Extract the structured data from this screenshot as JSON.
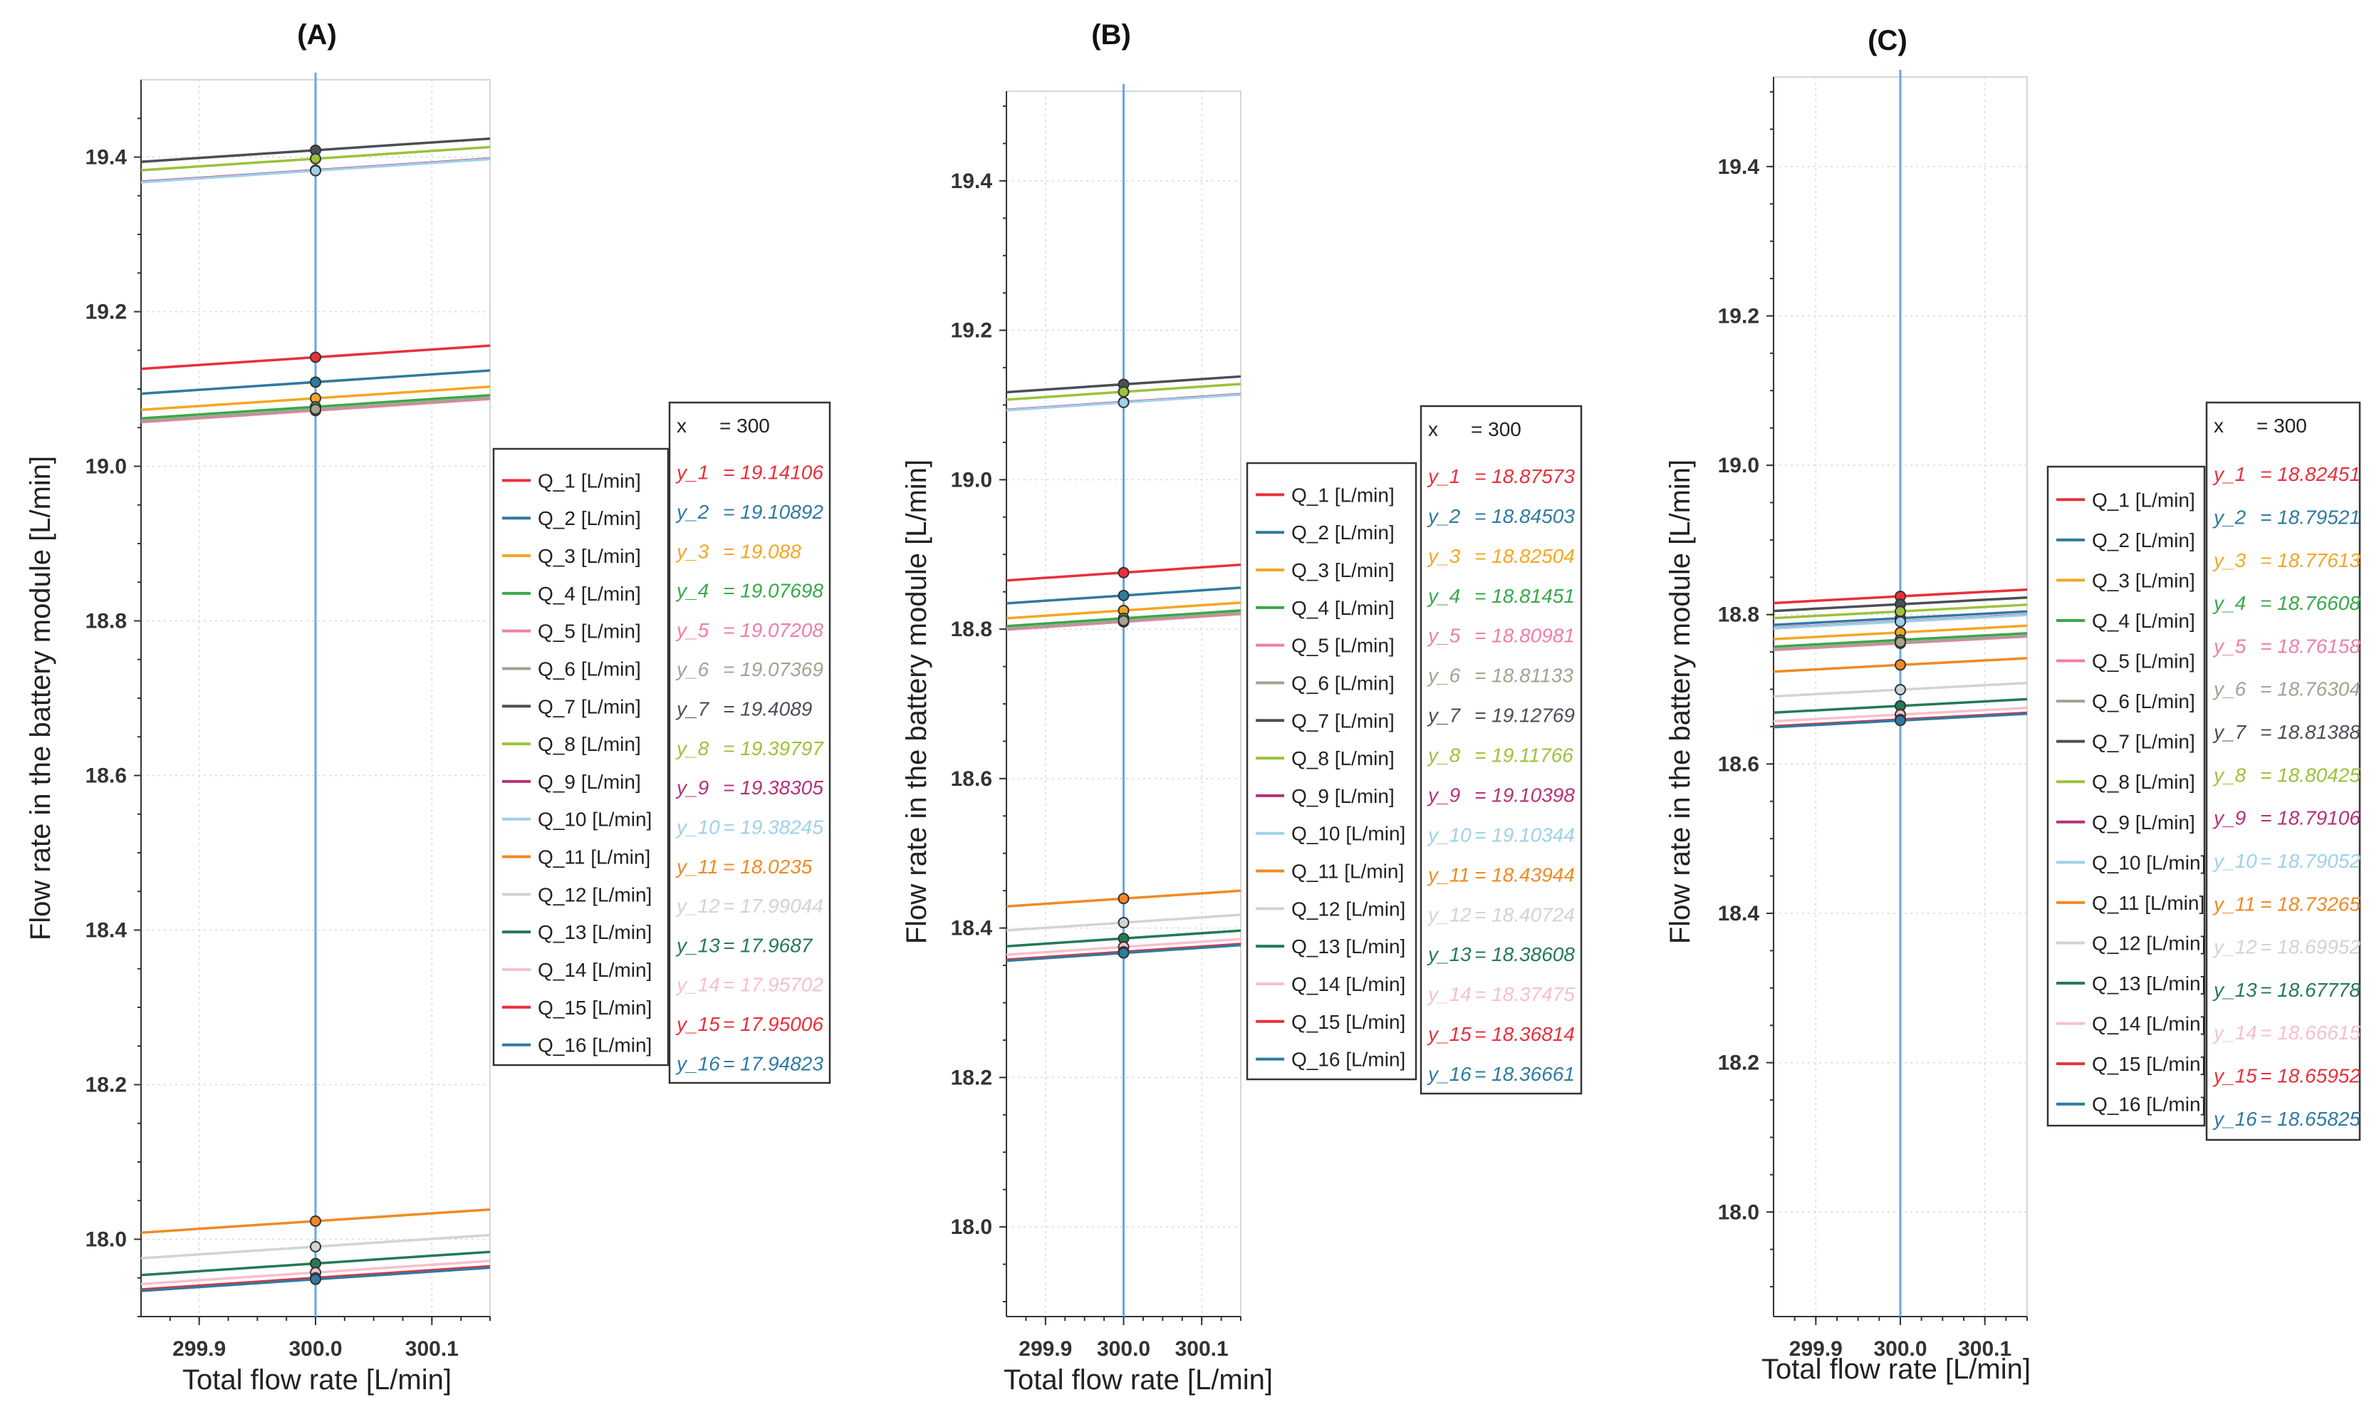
{
  "chart_data": [
    {
      "panel": "(A)",
      "type": "line",
      "xlabel": "Total flow rate [L/min]",
      "ylabel": "Flow rate in the battery module [L/min]",
      "x_range": [
        299.85,
        300.15
      ],
      "ylim": [
        17.9,
        19.5
      ],
      "xticks": [
        "299.9",
        "300.0",
        "300.1"
      ],
      "yticks": [
        "18.0",
        "18.2",
        "18.4",
        "18.6",
        "18.8",
        "19.0",
        "19.2",
        "19.4"
      ],
      "grid": true,
      "cursor_x": 300,
      "readout": {
        "x_label": "x",
        "x_value": "= 300"
      },
      "series": [
        {
          "name": "Q_1 [L/min]",
          "y_label": "y_1",
          "value_label": "= 19.14106",
          "value": 19.14106,
          "slope": 0.1
        },
        {
          "name": "Q_2 [L/min]",
          "y_label": "y_2",
          "value_label": "= 19.10892",
          "value": 19.10892,
          "slope": 0.1
        },
        {
          "name": "Q_3 [L/min]",
          "y_label": "y_3",
          "value_label": "= 19.088",
          "value": 19.088,
          "slope": 0.1
        },
        {
          "name": "Q_4 [L/min]",
          "y_label": "y_4",
          "value_label": "= 19.07698",
          "value": 19.07698,
          "slope": 0.1
        },
        {
          "name": "Q_5 [L/min]",
          "y_label": "y_5",
          "value_label": "= 19.07208",
          "value": 19.07208,
          "slope": 0.1
        },
        {
          "name": "Q_6 [L/min]",
          "y_label": "y_6",
          "value_label": "= 19.07369",
          "value": 19.07369,
          "slope": 0.1
        },
        {
          "name": "Q_7 [L/min]",
          "y_label": "y_7",
          "value_label": "= 19.4089",
          "value": 19.4089,
          "slope": 0.1
        },
        {
          "name": "Q_8 [L/min]",
          "y_label": "y_8",
          "value_label": "= 19.39797",
          "value": 19.39797,
          "slope": 0.1
        },
        {
          "name": "Q_9 [L/min]",
          "y_label": "y_9",
          "value_label": "= 19.38305",
          "value": 19.38305,
          "slope": 0.1
        },
        {
          "name": "Q_10 [L/min]",
          "y_label": "y_10",
          "value_label": "= 19.38245",
          "value": 19.38245,
          "slope": 0.1
        },
        {
          "name": "Q_11 [L/min]",
          "y_label": "y_11",
          "value_label": "= 18.0235",
          "value": 18.0235,
          "slope": 0.1
        },
        {
          "name": "Q_12 [L/min]",
          "y_label": "y_12",
          "value_label": "= 17.99044",
          "value": 17.99044,
          "slope": 0.1
        },
        {
          "name": "Q_13 [L/min]",
          "y_label": "y_13",
          "value_label": "= 17.9687",
          "value": 17.9687,
          "slope": 0.1
        },
        {
          "name": "Q_14 [L/min]",
          "y_label": "y_14",
          "value_label": "= 17.95702",
          "value": 17.95702,
          "slope": 0.1
        },
        {
          "name": "Q_15 [L/min]",
          "y_label": "y_15",
          "value_label": "= 17.95006",
          "value": 17.95006,
          "slope": 0.1
        },
        {
          "name": "Q_16 [L/min]",
          "y_label": "y_16",
          "value_label": "= 17.94823",
          "value": 17.94823,
          "slope": 0.1
        }
      ]
    },
    {
      "panel": "(B)",
      "type": "line",
      "xlabel": "Total flow rate [L/min]",
      "ylabel": "Flow rate in the battery module [L/min]",
      "x_range": [
        299.85,
        300.15
      ],
      "ylim": [
        17.88,
        19.52
      ],
      "xticks": [
        "299.9",
        "300.0",
        "300.1"
      ],
      "yticks": [
        "18.0",
        "18.2",
        "18.4",
        "18.6",
        "18.8",
        "19.0",
        "19.2",
        "19.4"
      ],
      "grid": true,
      "cursor_x": 300,
      "readout": {
        "x_label": "x",
        "x_value": "= 300"
      },
      "series": [
        {
          "name": "Q_1 [L/min]",
          "y_label": "y_1",
          "value_label": "= 18.87573",
          "value": 18.87573,
          "slope": 0.07
        },
        {
          "name": "Q_2 [L/min]",
          "y_label": "y_2",
          "value_label": "= 18.84503",
          "value": 18.84503,
          "slope": 0.07
        },
        {
          "name": "Q_3 [L/min]",
          "y_label": "y_3",
          "value_label": "= 18.82504",
          "value": 18.82504,
          "slope": 0.07
        },
        {
          "name": "Q_4 [L/min]",
          "y_label": "y_4",
          "value_label": "= 18.81451",
          "value": 18.81451,
          "slope": 0.07
        },
        {
          "name": "Q_5 [L/min]",
          "y_label": "y_5",
          "value_label": "= 18.80981",
          "value": 18.80981,
          "slope": 0.07
        },
        {
          "name": "Q_6 [L/min]",
          "y_label": "y_6",
          "value_label": "= 18.81133",
          "value": 18.81133,
          "slope": 0.07
        },
        {
          "name": "Q_7 [L/min]",
          "y_label": "y_7",
          "value_label": "= 19.12769",
          "value": 19.12769,
          "slope": 0.07
        },
        {
          "name": "Q_8 [L/min]",
          "y_label": "y_8",
          "value_label": "= 19.11766",
          "value": 19.11766,
          "slope": 0.07
        },
        {
          "name": "Q_9 [L/min]",
          "y_label": "y_9",
          "value_label": "= 19.10398",
          "value": 19.10398,
          "slope": 0.07
        },
        {
          "name": "Q_10 [L/min]",
          "y_label": "y_10",
          "value_label": "= 19.10344",
          "value": 19.10344,
          "slope": 0.07
        },
        {
          "name": "Q_11 [L/min]",
          "y_label": "y_11",
          "value_label": "= 18.43944",
          "value": 18.43944,
          "slope": 0.07
        },
        {
          "name": "Q_12 [L/min]",
          "y_label": "y_12",
          "value_label": "= 18.40724",
          "value": 18.40724,
          "slope": 0.07
        },
        {
          "name": "Q_13 [L/min]",
          "y_label": "y_13",
          "value_label": "= 18.38608",
          "value": 18.38608,
          "slope": 0.07
        },
        {
          "name": "Q_14 [L/min]",
          "y_label": "y_14",
          "value_label": "= 18.37475",
          "value": 18.37475,
          "slope": 0.07
        },
        {
          "name": "Q_15 [L/min]",
          "y_label": "y_15",
          "value_label": "= 18.36814",
          "value": 18.36814,
          "slope": 0.07
        },
        {
          "name": "Q_16 [L/min]",
          "y_label": "y_16",
          "value_label": "= 18.36661",
          "value": 18.36661,
          "slope": 0.07
        }
      ]
    },
    {
      "panel": "(C)",
      "type": "line",
      "xlabel": "Total flow rate [L/min]",
      "ylabel": "Flow rate in the battery module [L/min]",
      "x_range": [
        299.85,
        300.15
      ],
      "ylim": [
        17.86,
        19.52
      ],
      "xticks": [
        "299.9",
        "300.0",
        "300.1"
      ],
      "yticks": [
        "18.0",
        "18.2",
        "18.4",
        "18.6",
        "18.8",
        "19.0",
        "19.2",
        "19.4"
      ],
      "grid": true,
      "cursor_x": 300,
      "readout": {
        "x_label": "x",
        "x_value": "= 300"
      },
      "series": [
        {
          "name": "Q_1 [L/min]",
          "y_label": "y_1",
          "value_label": "= 18.82451",
          "value": 18.82451,
          "slope": 0.06
        },
        {
          "name": "Q_2 [L/min]",
          "y_label": "y_2",
          "value_label": "= 18.79521",
          "value": 18.79521,
          "slope": 0.06
        },
        {
          "name": "Q_3 [L/min]",
          "y_label": "y_3",
          "value_label": "= 18.77613",
          "value": 18.77613,
          "slope": 0.06
        },
        {
          "name": "Q_4 [L/min]",
          "y_label": "y_4",
          "value_label": "= 18.76608",
          "value": 18.76608,
          "slope": 0.06
        },
        {
          "name": "Q_5 [L/min]",
          "y_label": "y_5",
          "value_label": "= 18.76158",
          "value": 18.76158,
          "slope": 0.06
        },
        {
          "name": "Q_6 [L/min]",
          "y_label": "y_6",
          "value_label": "= 18.76304",
          "value": 18.76304,
          "slope": 0.06
        },
        {
          "name": "Q_7 [L/min]",
          "y_label": "y_7",
          "value_label": "= 18.81388",
          "value": 18.81388,
          "slope": 0.06
        },
        {
          "name": "Q_8 [L/min]",
          "y_label": "y_8",
          "value_label": "= 18.80425",
          "value": 18.80425,
          "slope": 0.06
        },
        {
          "name": "Q_9 [L/min]",
          "y_label": "y_9",
          "value_label": "= 18.79106",
          "value": 18.79106,
          "slope": 0.06
        },
        {
          "name": "Q_10 [L/min]",
          "y_label": "y_10",
          "value_label": "= 18.79052",
          "value": 18.79052,
          "slope": 0.06
        },
        {
          "name": "Q_11 [L/min]",
          "y_label": "y_11",
          "value_label": "= 18.73265",
          "value": 18.73265,
          "slope": 0.06
        },
        {
          "name": "Q_12 [L/min]",
          "y_label": "y_12",
          "value_label": "= 18.69952",
          "value": 18.69952,
          "slope": 0.06
        },
        {
          "name": "Q_13 [L/min]",
          "y_label": "y_13",
          "value_label": "= 18.67778",
          "value": 18.67778,
          "slope": 0.06
        },
        {
          "name": "Q_14 [L/min]",
          "y_label": "y_14",
          "value_label": "= 18.66615",
          "value": 18.66615,
          "slope": 0.06
        },
        {
          "name": "Q_15 [L/min]",
          "y_label": "y_15",
          "value_label": "= 18.65952",
          "value": 18.65952,
          "slope": 0.06
        },
        {
          "name": "Q_16 [L/min]",
          "y_label": "y_16",
          "value_label": "= 18.65825",
          "value": 18.65825,
          "slope": 0.06
        }
      ]
    }
  ],
  "colors": {
    "series": [
      "#e8303a",
      "#2f7aa0",
      "#f5a623",
      "#38a84a",
      "#f07ea8",
      "#a6a190",
      "#4a4f57",
      "#9cc23b",
      "#b5317a",
      "#9fd1e8",
      "#f08a24",
      "#cfd4d6",
      "#237a56",
      "#f6c0d0",
      "#e8303a",
      "#2f7aa0"
    ],
    "cursor": "#6aa5e6",
    "axis": "#333333"
  }
}
